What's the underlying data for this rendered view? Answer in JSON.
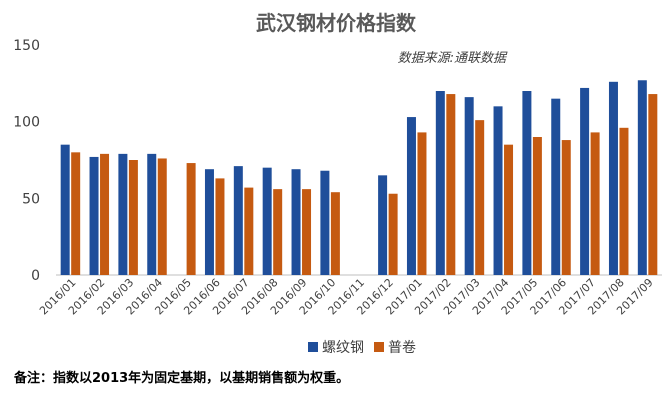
{
  "chart_data": {
    "type": "bar",
    "title": "武汉钢材价格指数",
    "source": "数据来源:通联数据",
    "note": "备注：指数以2013年为固定基期，以基期销售额为权重。",
    "categories": [
      "2016/01",
      "2016/02",
      "2016/03",
      "2016/04",
      "2016/05",
      "2016/06",
      "2016/07",
      "2016/08",
      "2016/09",
      "2016/10",
      "2016/11",
      "2016/12",
      "2017/01",
      "2017/02",
      "2017/03",
      "2017/04",
      "2017/05",
      "2017/06",
      "2017/07",
      "2017/08",
      "2017/09"
    ],
    "series": [
      {
        "name": "螺纹钢",
        "color": "#1F4E9A",
        "values": [
          85,
          77,
          79,
          79,
          null,
          69,
          71,
          70,
          69,
          68,
          null,
          65,
          103,
          120,
          116,
          110,
          120,
          115,
          122,
          126,
          127
        ]
      },
      {
        "name": "普卷",
        "color": "#C55A11",
        "values": [
          80,
          79,
          75,
          76,
          73,
          63,
          57,
          56,
          56,
          54,
          null,
          53,
          93,
          118,
          101,
          85,
          90,
          88,
          93,
          96,
          118
        ]
      }
    ],
    "ylim": [
      0,
      150
    ],
    "yticks": [
      0,
      50,
      100,
      150
    ],
    "legend": "bottom",
    "grid": false
  }
}
